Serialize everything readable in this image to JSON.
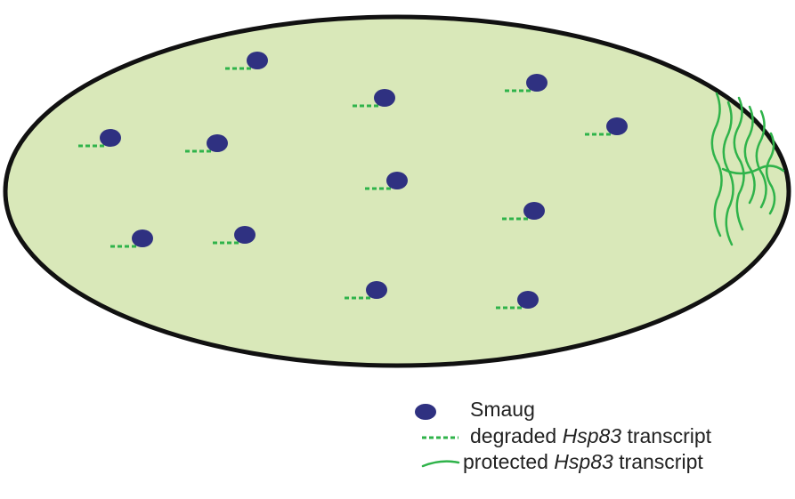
{
  "legend": [
    {
      "parts": [
        "Smaug"
      ]
    },
    {
      "parts": [
        "degraded",
        "Hsp83",
        "transcript"
      ]
    },
    {
      "parts": [
        "protected",
        "Hsp83",
        "transcript"
      ]
    }
  ]
}
